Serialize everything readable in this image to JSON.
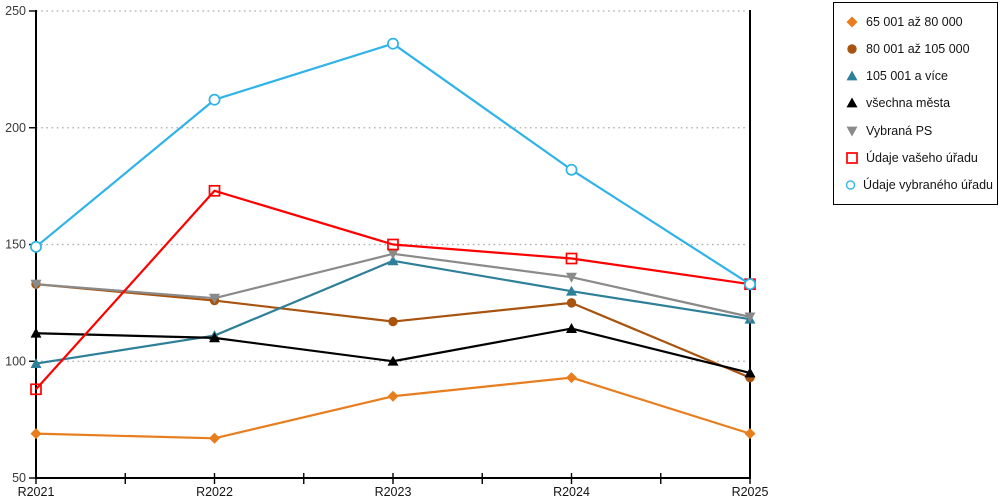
{
  "chart_data": {
    "type": "line",
    "title": "",
    "xlabel": "",
    "ylabel": "",
    "categories": [
      "R2021",
      "R2022",
      "R2023",
      "R2024",
      "R2025"
    ],
    "series": [
      {
        "name": "65 001 až 80 000",
        "marker": "diamond",
        "marker_fill": "filled",
        "color": "#E87D1E",
        "values": [
          69,
          67,
          85,
          93,
          69
        ]
      },
      {
        "name": "80 001 až 105 000",
        "marker": "circle",
        "marker_fill": "filled",
        "color": "#A8540F",
        "values": [
          133,
          126,
          117,
          125,
          93
        ]
      },
      {
        "name": "105 001 a více",
        "marker": "triangle-up",
        "marker_fill": "filled",
        "color": "#2E7F99",
        "values": [
          99,
          111,
          143,
          130,
          118
        ]
      },
      {
        "name": "všechna města",
        "marker": "triangle-up",
        "marker_fill": "filled",
        "color": "#000000",
        "values": [
          112,
          110,
          100,
          114,
          95
        ]
      },
      {
        "name": "Vybraná PS",
        "marker": "triangle-down",
        "marker_fill": "filled",
        "color": "#8A8A8A",
        "values": [
          133,
          127,
          146,
          136,
          119
        ]
      },
      {
        "name": "Údaje vašeho úřadu",
        "marker": "square",
        "marker_fill": "open",
        "color": "#FF0000",
        "values": [
          88,
          173,
          150,
          144,
          133
        ]
      },
      {
        "name": "Údaje vybraného úřadu",
        "marker": "circle",
        "marker_fill": "open",
        "color": "#2FB3E8",
        "values": [
          149,
          212,
          236,
          182,
          133
        ]
      }
    ],
    "ylim": [
      50,
      250
    ],
    "yticks": [
      50,
      100,
      150,
      200,
      250
    ],
    "grid": "horizontal-dotted",
    "gridline_color": "#ABABAB",
    "axis_color": "#000000",
    "legend_position": "right",
    "legend_border_color": "#000000"
  }
}
